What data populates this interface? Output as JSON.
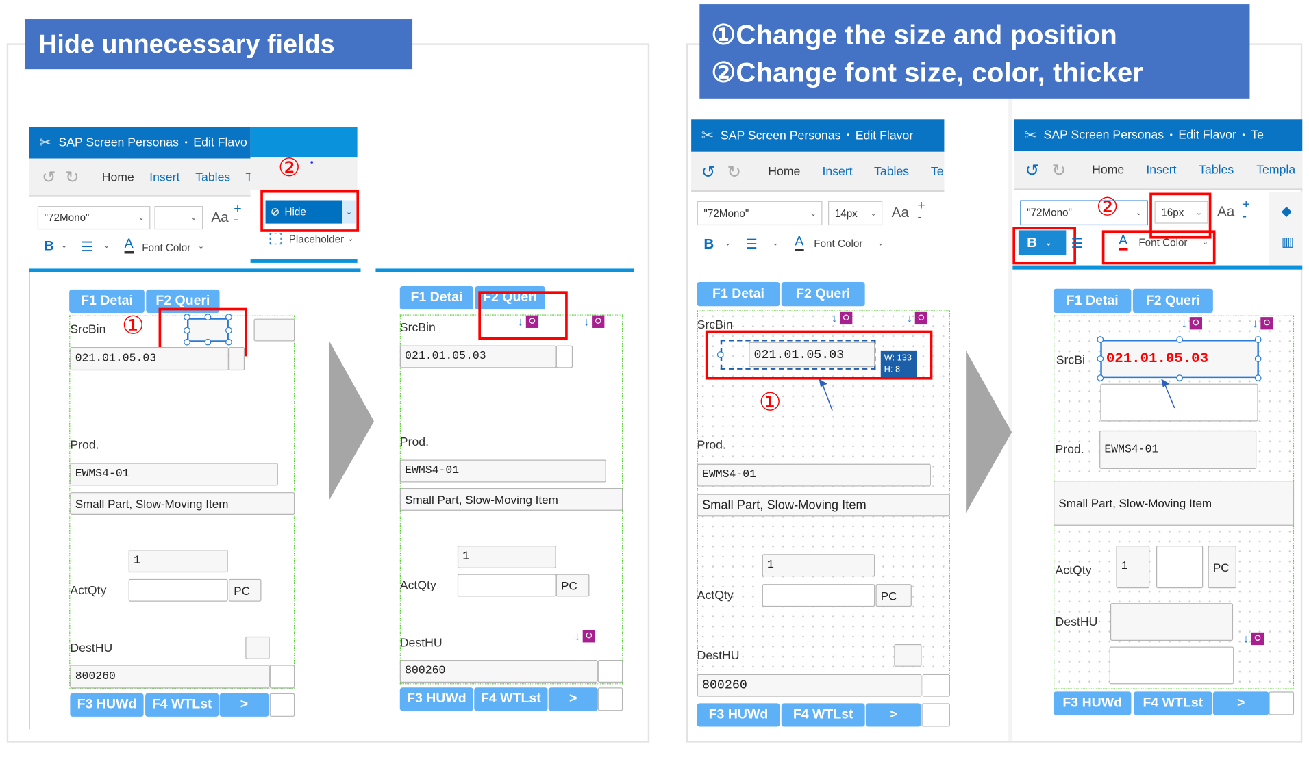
{
  "titles": {
    "left": "Hide unnecessary fields",
    "right_line1": "①Change the size and position",
    "right_line2": "②Change font size, color, thicker"
  },
  "app": {
    "name": "SAP Screen Personas",
    "separator": "•",
    "flavor_truncated": "Edit Flavo",
    "flavor": "Edit Flavor",
    "extra_truncated": "Te"
  },
  "ribbon_tabs": {
    "home": "Home",
    "insert": "Insert",
    "tables": "Tables",
    "t_a": "T",
    "t_c": "Te",
    "t_d": "Templa"
  },
  "format": {
    "font": "\"72Mono\"",
    "size_c": "14px",
    "size_d": "16px",
    "aa": "Aa",
    "bold": "B",
    "font_color": "Font Color"
  },
  "popup": {
    "hide": "Hide",
    "placeholder": "Placeholder"
  },
  "markers": {
    "one": "①",
    "two": "②"
  },
  "form": {
    "tab_f1": "F1 Detai",
    "tab_f2": "F2 Queri",
    "srcbin": "SrcBin",
    "srcbin_trunc": "SrcBi",
    "srcbin_value": "021.01.05.03",
    "prod": "Prod.",
    "prod_value": "EWMS4-01",
    "prod_desc": "Small Part, Slow-Moving Item",
    "qty_value": "1",
    "actqty": "ActQty",
    "unit": "PC",
    "desthu": "DestHU",
    "desthu_value": "800260",
    "btn_f3": "F3 HUWd",
    "btn_f4": "F4 WTLst",
    "btn_next": ">"
  },
  "tooltip": {
    "w": "W: 133",
    "h": "H: 8"
  },
  "colors": {
    "title_bg": "#4472c4",
    "shell_header": "#0a74c4",
    "form_button": "#5eb0f7",
    "highlight": "#ff0000",
    "hide_button": "#0070c0",
    "hidden_marker": "#a8208f"
  }
}
